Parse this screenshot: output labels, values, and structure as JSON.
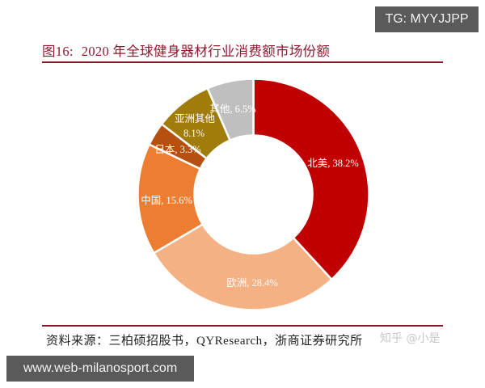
{
  "header": {
    "figure_no": "图16:",
    "title": "2020 年全球健身器材行业消费额市场份额"
  },
  "footer": {
    "source": "资料来源：三柏硕招股书，QYResearch，浙商证券研究所",
    "faint_watermark": "知乎 @小是"
  },
  "watermarks": {
    "top_right": "TG: MYYJJPP",
    "bottom_left": "www.web-milanosport.com"
  },
  "chart_data": {
    "type": "pie",
    "subtype": "donut",
    "title": "2020 年全球健身器材行业消费额市场份额",
    "unit": "%",
    "start_angle": "12 o'clock, clockwise",
    "categories": [
      "北美",
      "欧洲",
      "中国",
      "日本",
      "亚洲其他",
      "其他"
    ],
    "values": [
      38.2,
      28.4,
      15.6,
      3.3,
      8.1,
      6.5
    ],
    "labels": [
      "北美, 38.2%",
      "欧洲, 28.4%",
      "中国, 15.6%",
      "日本, 3.3%",
      "亚洲其他 8.1%",
      "其他, 6.5%"
    ],
    "colors": [
      "#C00000",
      "#F4B183",
      "#ED7D31",
      "#B5500F",
      "#A07D0A",
      "#BFBFBF"
    ],
    "legend": "none (data labels on slices)"
  },
  "slices": [
    {
      "label": "北美, 38.2%"
    },
    {
      "label": "欧洲, 28.4%"
    },
    {
      "label": "中国, 15.6%"
    },
    {
      "label": "日本, 3.3%"
    },
    {
      "label_line1": "亚洲其他",
      "label_line2": "8.1%"
    },
    {
      "label": "其他, 6.5%"
    }
  ],
  "colors": {
    "title": "#8B1A2E",
    "rule": "#8B1A2E",
    "badge_bg": "#5a5a5a"
  }
}
